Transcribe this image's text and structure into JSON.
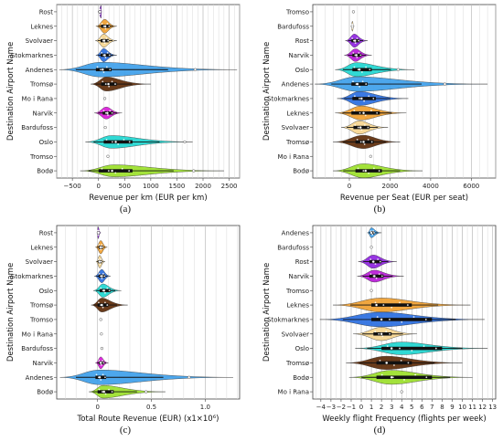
{
  "chart_data": [
    {
      "type": "violin",
      "panel_label": "(a)",
      "xlabel": "Revenue per km (EUR per km)",
      "ylabel": "Destination Airport Name",
      "xlim": [
        -800,
        2700
      ],
      "xticks": [
        -500,
        0,
        500,
        1000,
        1500,
        2000,
        2500
      ],
      "categories": [
        {
          "name": "Rost",
          "color": "#8e24e0",
          "lo": -10,
          "hi": 60,
          "peak": 50,
          "q1": 15,
          "q3": 40,
          "med": 25,
          "w": 0.38,
          "outliers": []
        },
        {
          "name": "Leknes",
          "color": "#f0a030",
          "lo": -50,
          "hi": 350,
          "peak": 120,
          "q1": 50,
          "q3": 220,
          "med": 130,
          "w": 0.42,
          "outliers": []
        },
        {
          "name": "Svolvaer",
          "color": "#f6d690",
          "lo": -60,
          "hi": 350,
          "peak": 100,
          "q1": 40,
          "q3": 200,
          "med": 110,
          "w": 0.4,
          "outliers": []
        },
        {
          "name": "Stokmarknes",
          "color": "#2a6ee0",
          "lo": -50,
          "hi": 350,
          "peak": 100,
          "q1": 40,
          "q3": 230,
          "med": 120,
          "w": 0.4,
          "outliers": []
        },
        {
          "name": "Andenes",
          "color": "#3ea0ea",
          "lo": -750,
          "hi": 2650,
          "peak": 50,
          "q1": -50,
          "q3": 250,
          "med": 80,
          "w": 0.44,
          "outliers": [
            1850
          ]
        },
        {
          "name": "Tromsø",
          "color": "#5c2a08",
          "lo": -150,
          "hi": 1000,
          "peak": 150,
          "q1": 50,
          "q3": 350,
          "med": 190,
          "w": 0.42,
          "outliers": []
        },
        {
          "name": "Mo i Rana",
          "color": "#e6e6e6",
          "lo": 0,
          "hi": 0,
          "peak": 0,
          "q1": 0,
          "q3": 0,
          "med": 0,
          "w": 0,
          "outliers": [
            120
          ]
        },
        {
          "name": "Narvik",
          "color": "#d81ad8",
          "lo": -80,
          "hi": 450,
          "peak": 150,
          "q1": 80,
          "q3": 280,
          "med": 170,
          "w": 0.36,
          "outliers": []
        },
        {
          "name": "Bardufoss",
          "color": "#e6e6e6",
          "lo": 0,
          "hi": 0,
          "peak": 0,
          "q1": 0,
          "q3": 0,
          "med": 0,
          "w": 0,
          "outliers": [
            130
          ]
        },
        {
          "name": "Oslo",
          "color": "#1fd6d0",
          "lo": -250,
          "hi": 1800,
          "peak": 250,
          "q1": 100,
          "q3": 650,
          "med": 330,
          "w": 0.38,
          "outliers": [
            1650
          ]
        },
        {
          "name": "Tromso",
          "color": "#e6e6e6",
          "lo": 0,
          "hi": 0,
          "peak": 0,
          "q1": 0,
          "q3": 0,
          "med": 0,
          "w": 0,
          "outliers": [
            180
          ]
        },
        {
          "name": "Bodø",
          "color": "#9be02a",
          "lo": -350,
          "hi": 2400,
          "peak": 300,
          "q1": 0,
          "q3": 650,
          "med": 260,
          "w": 0.36,
          "outliers": [
            1820
          ]
        }
      ]
    },
    {
      "type": "violin",
      "panel_label": "(b)",
      "xlabel": "Revenue per Seat (EUR per seat)",
      "ylabel": "Destination Airport Name",
      "xlim": [
        -1800,
        7200
      ],
      "xticks": [
        0,
        2000,
        4000,
        6000
      ],
      "categories": [
        {
          "name": "Tromso",
          "color": "#e6e6e6",
          "lo": 0,
          "hi": 0,
          "peak": 0,
          "q1": 0,
          "q3": 0,
          "med": 0,
          "w": 0,
          "outliers": [
            200
          ]
        },
        {
          "name": "Bardufoss",
          "color": "#f6d690",
          "lo": 80,
          "hi": 240,
          "peak": 150,
          "q1": 120,
          "q3": 180,
          "med": 150,
          "w": 0.3,
          "outliers": []
        },
        {
          "name": "Rost",
          "color": "#8e24e0",
          "lo": -200,
          "hi": 900,
          "peak": 250,
          "q1": 100,
          "q3": 500,
          "med": 280,
          "w": 0.4,
          "outliers": []
        },
        {
          "name": "Narvik",
          "color": "#b81ad8",
          "lo": -250,
          "hi": 1100,
          "peak": 300,
          "q1": 150,
          "q3": 600,
          "med": 350,
          "w": 0.38,
          "outliers": []
        },
        {
          "name": "Oslo",
          "color": "#1fd6d0",
          "lo": -700,
          "hi": 3200,
          "peak": 350,
          "q1": 150,
          "q3": 1100,
          "med": 500,
          "w": 0.42,
          "outliers": [
            2400
          ]
        },
        {
          "name": "Andenes",
          "color": "#3ea0ea",
          "lo": -1700,
          "hi": 6800,
          "peak": 400,
          "q1": 100,
          "q3": 900,
          "med": 400,
          "w": 0.44,
          "outliers": [
            4700
          ]
        },
        {
          "name": "Stokmarknes",
          "color": "#2a6ee0",
          "lo": -600,
          "hi": 2900,
          "peak": 500,
          "q1": 150,
          "q3": 1300,
          "med": 600,
          "w": 0.42,
          "outliers": []
        },
        {
          "name": "Leknes",
          "color": "#f0a030",
          "lo": -700,
          "hi": 2800,
          "peak": 600,
          "q1": 100,
          "q3": 1500,
          "med": 700,
          "w": 0.42,
          "outliers": []
        },
        {
          "name": "Svolvaer",
          "color": "#f6d690",
          "lo": -400,
          "hi": 1900,
          "peak": 500,
          "q1": 200,
          "q3": 1000,
          "med": 550,
          "w": 0.4,
          "outliers": []
        },
        {
          "name": "Tromsø",
          "color": "#5c2a08",
          "lo": -800,
          "hi": 2500,
          "peak": 700,
          "q1": 300,
          "q3": 1200,
          "med": 700,
          "w": 0.4,
          "outliers": []
        },
        {
          "name": "Mo i Rana",
          "color": "#e6e6e6",
          "lo": 0,
          "hi": 0,
          "peak": 0,
          "q1": 0,
          "q3": 0,
          "med": 0,
          "w": 0,
          "outliers": [
            1050
          ]
        },
        {
          "name": "Bodø",
          "color": "#9be02a",
          "lo": -800,
          "hi": 3600,
          "peak": 700,
          "q1": 300,
          "q3": 1600,
          "med": 800,
          "w": 0.42,
          "outliers": []
        }
      ]
    },
    {
      "type": "violin",
      "panel_label": "(c)",
      "xlabel": "Total Route Revenue (EUR) (x1×10⁶)",
      "ylabel": "Destination Airport Name",
      "xlim": [
        -0.38,
        1.32
      ],
      "xticks": [
        0,
        0.5,
        1.0
      ],
      "xticklabels": [
        "0",
        "0.5",
        "1.0"
      ],
      "categories": [
        {
          "name": "Rost",
          "color": "#8e24e0",
          "lo": -0.005,
          "hi": 0.03,
          "peak": 0.005,
          "q1": 0,
          "q3": 0.015,
          "med": 0.006,
          "w": 0.36,
          "outliers": []
        },
        {
          "name": "Leknes",
          "color": "#f0a030",
          "lo": -0.02,
          "hi": 0.09,
          "peak": 0.03,
          "q1": 0.01,
          "q3": 0.05,
          "med": 0.03,
          "w": 0.4,
          "outliers": []
        },
        {
          "name": "Svolvaer",
          "color": "#f6d690",
          "lo": -0.015,
          "hi": 0.07,
          "peak": 0.02,
          "q1": 0.005,
          "q3": 0.04,
          "med": 0.02,
          "w": 0.38,
          "outliers": []
        },
        {
          "name": "Stokmarknes",
          "color": "#2a6ee0",
          "lo": -0.03,
          "hi": 0.12,
          "peak": 0.04,
          "q1": 0.01,
          "q3": 0.07,
          "med": 0.04,
          "w": 0.4,
          "outliers": []
        },
        {
          "name": "Oslo",
          "color": "#1fd6d0",
          "lo": -0.04,
          "hi": 0.22,
          "peak": 0.05,
          "q1": 0.02,
          "q3": 0.12,
          "med": 0.06,
          "w": 0.4,
          "outliers": []
        },
        {
          "name": "Tromsø",
          "color": "#5c2a08",
          "lo": -0.06,
          "hi": 0.28,
          "peak": 0.04,
          "q1": 0.0,
          "q3": 0.1,
          "med": 0.04,
          "w": 0.42,
          "outliers": []
        },
        {
          "name": "Tromso",
          "color": "#e6e6e6",
          "lo": 0,
          "hi": 0,
          "peak": 0,
          "q1": 0,
          "q3": 0,
          "med": 0,
          "w": 0,
          "outliers": [
            0.03
          ]
        },
        {
          "name": "Mo i Rana",
          "color": "#e6e6e6",
          "lo": 0,
          "hi": 0,
          "peak": 0,
          "q1": 0,
          "q3": 0,
          "med": 0,
          "w": 0,
          "outliers": [
            0.035
          ]
        },
        {
          "name": "Bardufoss",
          "color": "#e6e6e6",
          "lo": 0,
          "hi": 0,
          "peak": 0,
          "q1": 0,
          "q3": 0,
          "med": 0,
          "w": 0,
          "outliers": [
            0.04
          ]
        },
        {
          "name": "Narvik",
          "color": "#d81ad8",
          "lo": -0.02,
          "hi": 0.1,
          "peak": 0.03,
          "q1": 0.01,
          "q3": 0.06,
          "med": 0.03,
          "w": 0.36,
          "outliers": []
        },
        {
          "name": "Andenes",
          "color": "#3ea0ea",
          "lo": -0.35,
          "hi": 1.26,
          "peak": 0.02,
          "q1": -0.02,
          "q3": 0.08,
          "med": 0.02,
          "w": 0.44,
          "outliers": [
            0.85
          ]
        },
        {
          "name": "Bodø",
          "color": "#9be02a",
          "lo": -0.08,
          "hi": 0.63,
          "peak": 0.05,
          "q1": 0.0,
          "q3": 0.15,
          "med": 0.06,
          "w": 0.38,
          "outliers": [
            0.45
          ]
        }
      ]
    },
    {
      "type": "violin",
      "panel_label": "(d)",
      "xlabel": "Weekly flight Frequency (flights per week)",
      "ylabel": "Destination Airport Name",
      "xlim": [
        -4.8,
        13.3
      ],
      "xticks": [
        -4,
        -3,
        -2,
        -1,
        0,
        1,
        2,
        3,
        4,
        5,
        6,
        7,
        8,
        9,
        10,
        11,
        12,
        13
      ],
      "xticklabels": [
        "−4",
        "−3",
        "−2",
        "−1",
        "0",
        "1",
        "2",
        "3",
        "4",
        "5",
        "6",
        "7",
        "8",
        "9",
        "10",
        "11",
        "12",
        "13"
      ],
      "categories": [
        {
          "name": "Andenes",
          "color": "#3ea0ea",
          "lo": 0.6,
          "hi": 2.0,
          "peak": 1.0,
          "q1": 0.9,
          "q3": 1.3,
          "med": 1.0,
          "w": 0.3,
          "outliers": []
        },
        {
          "name": "Bardufoss",
          "color": "#e6e6e6",
          "lo": 0,
          "hi": 0,
          "peak": 0,
          "q1": 0,
          "q3": 0,
          "med": 0,
          "w": 0,
          "outliers": [
            1.0
          ]
        },
        {
          "name": "Rost",
          "color": "#8e24e0",
          "lo": -0.3,
          "hi": 3.5,
          "peak": 1.2,
          "q1": 0.8,
          "q3": 2.0,
          "med": 1.2,
          "w": 0.4,
          "outliers": []
        },
        {
          "name": "Narvik",
          "color": "#b81ad8",
          "lo": -0.4,
          "hi": 4.2,
          "peak": 1.3,
          "q1": 0.8,
          "q3": 2.2,
          "med": 1.3,
          "w": 0.36,
          "outliers": []
        },
        {
          "name": "Tromso",
          "color": "#e6e6e6",
          "lo": 0,
          "hi": 0,
          "peak": 0,
          "q1": 0,
          "q3": 0,
          "med": 0,
          "w": 0,
          "outliers": [
            1.0
          ]
        },
        {
          "name": "Leknes",
          "color": "#f0a030",
          "lo": -2.8,
          "hi": 10.8,
          "peak": 2.0,
          "q1": 1.0,
          "q3": 5.0,
          "med": 1.5,
          "w": 0.42,
          "outliers": []
        },
        {
          "name": "Stokmarknes",
          "color": "#2a6ee0",
          "lo": -4.1,
          "hi": 12.2,
          "peak": 2.0,
          "q1": 1.0,
          "q3": 7.0,
          "med": 2.0,
          "w": 0.44,
          "outliers": []
        },
        {
          "name": "Svolvaer",
          "color": "#f6d690",
          "lo": -0.8,
          "hi": 5.5,
          "peak": 2.0,
          "q1": 1.2,
          "q3": 3.0,
          "med": 2.0,
          "w": 0.4,
          "outliers": []
        },
        {
          "name": "Oslo",
          "color": "#1fd6d0",
          "lo": -0.6,
          "hi": 12.5,
          "peak": 4.0,
          "q1": 2.0,
          "q3": 8.0,
          "med": 3.0,
          "w": 0.38,
          "outliers": []
        },
        {
          "name": "Tromsø",
          "color": "#5c2a08",
          "lo": -1.5,
          "hi": 10.0,
          "peak": 2.5,
          "q1": 1.5,
          "q3": 5.0,
          "med": 2.5,
          "w": 0.4,
          "outliers": []
        },
        {
          "name": "Bodø",
          "color": "#9be02a",
          "lo": -1.2,
          "hi": 11.0,
          "peak": 3.0,
          "q1": 1.5,
          "q3": 7.0,
          "med": 3.0,
          "w": 0.42,
          "outliers": []
        },
        {
          "name": "Mo i Rana",
          "color": "#e6e6e6",
          "lo": 0,
          "hi": 0,
          "peak": 0,
          "q1": 0,
          "q3": 0,
          "med": 0,
          "w": 0,
          "outliers": [
            4.0
          ]
        }
      ]
    }
  ]
}
